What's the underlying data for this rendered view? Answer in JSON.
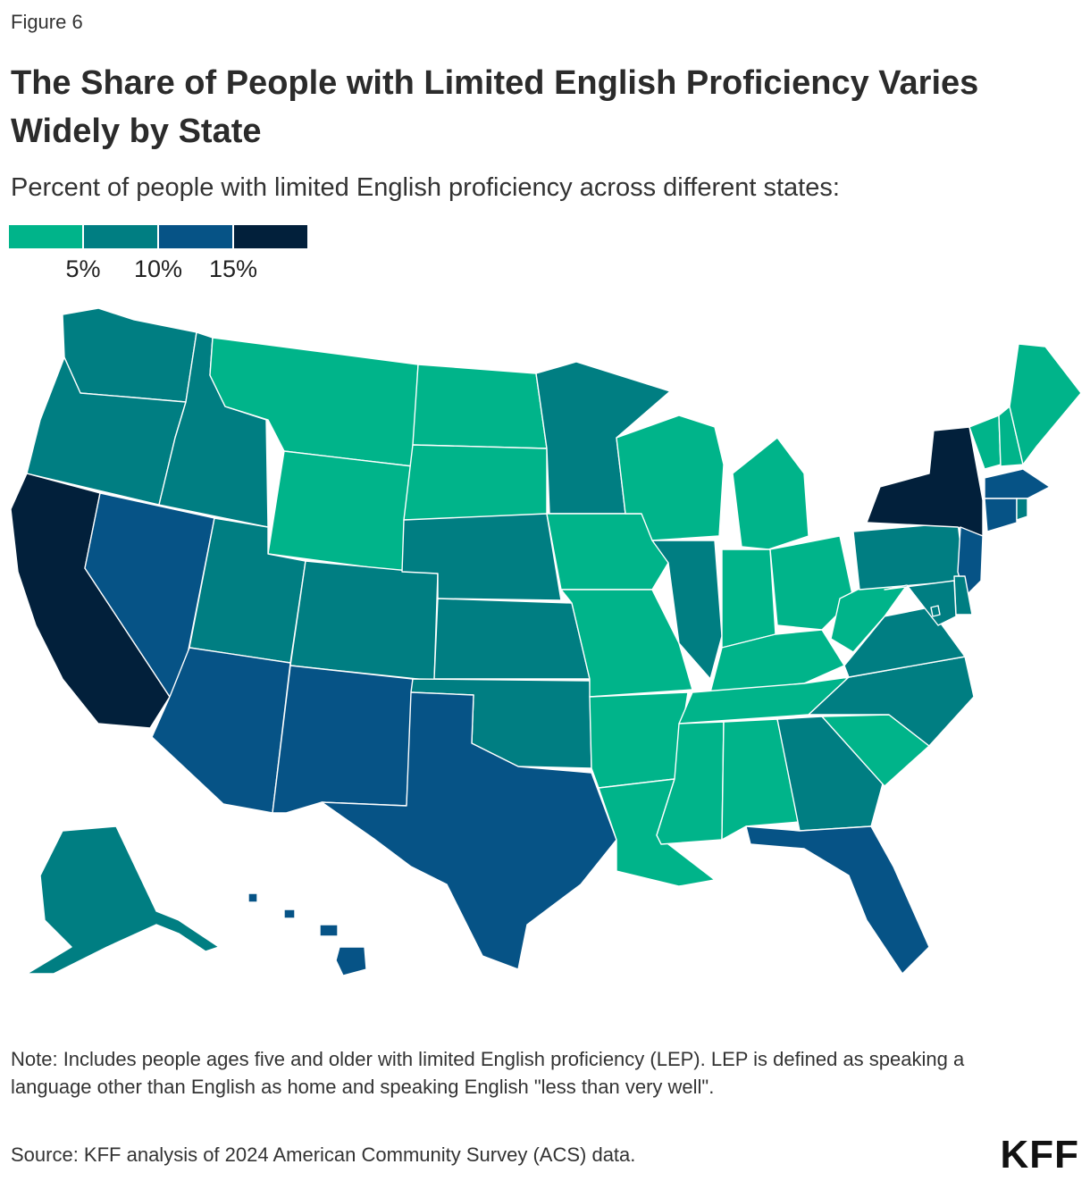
{
  "figure_label": "Figure 6",
  "title": "The Share of People with Limited English Proficiency Varies Widely by State",
  "subtitle": "Percent of people with limited English proficiency across different states:",
  "legend": {
    "bins": [
      {
        "color": "#00b48a"
      },
      {
        "color": "#007e82"
      },
      {
        "color": "#065386"
      },
      {
        "color": "#02203b"
      }
    ],
    "ticks": [
      "5%",
      "10%",
      "15%"
    ]
  },
  "map_data": {
    "bin_colors": [
      "#00b48a",
      "#007e82",
      "#065386",
      "#02203b"
    ],
    "states": [
      {
        "abbr": "WA",
        "bin": 1
      },
      {
        "abbr": "OR",
        "bin": 1
      },
      {
        "abbr": "CA",
        "bin": 3
      },
      {
        "abbr": "NV",
        "bin": 2
      },
      {
        "abbr": "ID",
        "bin": 1
      },
      {
        "abbr": "MT",
        "bin": 0
      },
      {
        "abbr": "WY",
        "bin": 0
      },
      {
        "abbr": "UT",
        "bin": 1
      },
      {
        "abbr": "CO",
        "bin": 1
      },
      {
        "abbr": "AZ",
        "bin": 2
      },
      {
        "abbr": "NM",
        "bin": 2
      },
      {
        "abbr": "ND",
        "bin": 0
      },
      {
        "abbr": "SD",
        "bin": 0
      },
      {
        "abbr": "NE",
        "bin": 1
      },
      {
        "abbr": "KS",
        "bin": 1
      },
      {
        "abbr": "OK",
        "bin": 1
      },
      {
        "abbr": "TX",
        "bin": 2
      },
      {
        "abbr": "MN",
        "bin": 1
      },
      {
        "abbr": "IA",
        "bin": 0
      },
      {
        "abbr": "MO",
        "bin": 0
      },
      {
        "abbr": "AR",
        "bin": 0
      },
      {
        "abbr": "LA",
        "bin": 0
      },
      {
        "abbr": "WI",
        "bin": 0
      },
      {
        "abbr": "IL",
        "bin": 1
      },
      {
        "abbr": "MI",
        "bin": 0
      },
      {
        "abbr": "IN",
        "bin": 0
      },
      {
        "abbr": "OH",
        "bin": 0
      },
      {
        "abbr": "KY",
        "bin": 0
      },
      {
        "abbr": "TN",
        "bin": 0
      },
      {
        "abbr": "MS",
        "bin": 0
      },
      {
        "abbr": "AL",
        "bin": 0
      },
      {
        "abbr": "GA",
        "bin": 1
      },
      {
        "abbr": "FL",
        "bin": 2
      },
      {
        "abbr": "SC",
        "bin": 0
      },
      {
        "abbr": "NC",
        "bin": 1
      },
      {
        "abbr": "VA",
        "bin": 1
      },
      {
        "abbr": "WV",
        "bin": 0
      },
      {
        "abbr": "PA",
        "bin": 1
      },
      {
        "abbr": "NY",
        "bin": 3
      },
      {
        "abbr": "VT",
        "bin": 0
      },
      {
        "abbr": "NH",
        "bin": 0
      },
      {
        "abbr": "ME",
        "bin": 0
      },
      {
        "abbr": "MA",
        "bin": 2
      },
      {
        "abbr": "RI",
        "bin": 1
      },
      {
        "abbr": "CT",
        "bin": 2
      },
      {
        "abbr": "NJ",
        "bin": 2
      },
      {
        "abbr": "DE",
        "bin": 1
      },
      {
        "abbr": "MD",
        "bin": 1
      },
      {
        "abbr": "DC",
        "bin": 1
      },
      {
        "abbr": "AK",
        "bin": 1
      },
      {
        "abbr": "HI",
        "bin": 2
      }
    ]
  },
  "note": "Note: Includes people ages five and older with limited English proficiency (LEP). LEP is defined as speaking a language other than English as home and speaking English \"less than very well\".",
  "source": "Source: KFF analysis of 2024 American Community Survey (ACS) data.",
  "logo": "KFF"
}
